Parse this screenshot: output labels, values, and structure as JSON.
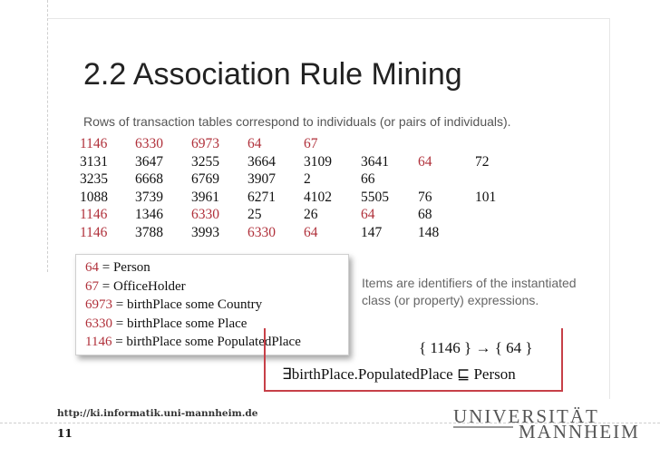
{
  "slide": {
    "title": "2.2  Association Rule Mining",
    "subtitle": "Rows of transaction tables correspond to individuals (or pairs of individuals)."
  },
  "transactions": [
    [
      {
        "v": "1146",
        "hl": true
      },
      {
        "v": "6330",
        "hl": true
      },
      {
        "v": "6973",
        "hl": true
      },
      {
        "v": "64",
        "hl": true
      },
      {
        "v": "67",
        "hl": true
      }
    ],
    [
      {
        "v": "3131"
      },
      {
        "v": "3647"
      },
      {
        "v": "3255"
      },
      {
        "v": "3664"
      },
      {
        "v": "3109"
      },
      {
        "v": "3641"
      },
      {
        "v": "64",
        "hl": true
      },
      {
        "v": "72"
      }
    ],
    [
      {
        "v": "3235"
      },
      {
        "v": "6668"
      },
      {
        "v": "6769"
      },
      {
        "v": "3907"
      },
      {
        "v": "2"
      },
      {
        "v": "66"
      }
    ],
    [
      {
        "v": "1088"
      },
      {
        "v": "3739"
      },
      {
        "v": "3961"
      },
      {
        "v": "6271"
      },
      {
        "v": "4102"
      },
      {
        "v": "5505"
      },
      {
        "v": "76"
      },
      {
        "v": "101"
      }
    ],
    [
      {
        "v": "1146",
        "hl": true
      },
      {
        "v": "1346"
      },
      {
        "v": "6330",
        "hl": true
      },
      {
        "v": "25"
      },
      {
        "v": "26"
      },
      {
        "v": "64",
        "hl": true
      },
      {
        "v": "68"
      }
    ],
    [
      {
        "v": "1146",
        "hl": true
      },
      {
        "v": "3788"
      },
      {
        "v": "3993"
      },
      {
        "v": "6330",
        "hl": true
      },
      {
        "v": "64",
        "hl": true
      },
      {
        "v": "147"
      },
      {
        "v": "148"
      }
    ]
  ],
  "legend": [
    {
      "id": "64",
      "text": " = Person"
    },
    {
      "id": "67",
      "text": " = OfficeHolder"
    },
    {
      "id": "6973",
      "text": " = birthPlace some Country"
    },
    {
      "id": "6330",
      "text": " = birthPlace some Place"
    },
    {
      "id": "1146",
      "text": " = birthPlace some PopulatedPlace"
    }
  ],
  "note": "Items are identifiers of the instantiated class (or property) expressions.",
  "rule": {
    "implication": "{ 1146 } → { 64 }",
    "axiom": "∃birthPlace.PopulatedPlace ⊑ Person"
  },
  "footer": {
    "url": "http://ki.informatik.uni-mannheim.de",
    "page": "11",
    "logo_top": "UNIVERSITÄT",
    "logo_bottom": "MANNHEIM"
  },
  "colors": {
    "highlight": "#b0303a",
    "rule_border": "#c74048"
  }
}
